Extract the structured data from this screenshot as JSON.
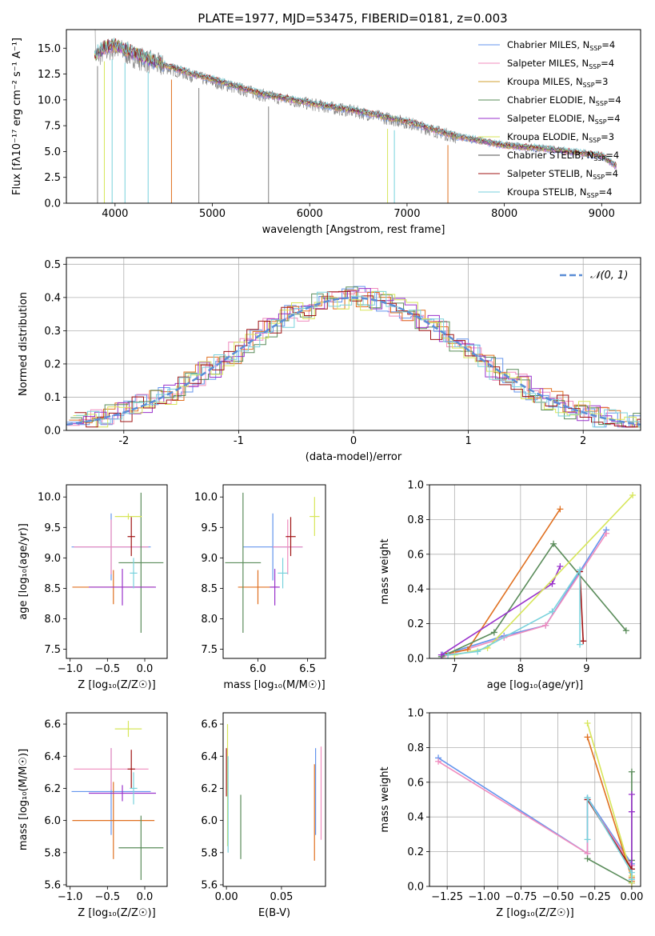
{
  "chart_data": [
    {
      "id": "spectrum",
      "type": "line",
      "title": "PLATE=1977, MJD=53475, FIBERID=0181, z=0.003",
      "xlabel": "wavelength [Angstrom, rest frame]",
      "ylabel": "Flux [fλ10⁻¹⁷ erg cm⁻² s⁻¹ A⁻¹]",
      "xlim": [
        3500,
        9400
      ],
      "ylim": [
        0,
        16.8
      ],
      "xticks": [
        4000,
        5000,
        6000,
        7000,
        8000,
        9000
      ],
      "yticks": [
        0.0,
        2.5,
        5.0,
        7.5,
        10.0,
        12.5,
        15.0
      ],
      "legend_position": "upper-right",
      "data_wavelength": [
        3780,
        3900,
        4000,
        4200,
        4500,
        4800,
        5000,
        5500,
        6000,
        6500,
        7000,
        7500,
        8000,
        8500,
        9000,
        9150
      ],
      "data_flux": [
        14.0,
        14.8,
        15.0,
        14.2,
        13.2,
        12.3,
        11.8,
        10.5,
        9.6,
        8.8,
        7.8,
        6.4,
        5.6,
        5.2,
        4.6,
        3.5
      ],
      "model_flux": [
        14.3,
        15.1,
        15.3,
        14.5,
        13.4,
        12.5,
        12.0,
        10.6,
        9.7,
        8.9,
        7.9,
        6.5,
        5.6,
        5.2,
        4.6,
        3.6
      ],
      "series": [
        {
          "name": "Chabrier MILES, N",
          "sub": "SSP",
          "suffix": "=4",
          "color": "#6495ed"
        },
        {
          "name": "Salpeter MILES, N",
          "sub": "SSP",
          "suffix": "=4",
          "color": "#f08cbe"
        },
        {
          "name": "Kroupa MILES, N",
          "sub": "SSP",
          "suffix": "=3",
          "color": "#d2a032"
        },
        {
          "name": "Chabrier ELODIE, N",
          "sub": "SSP",
          "suffix": "=4",
          "color": "#5a8c5a"
        },
        {
          "name": "Salpeter ELODIE, N",
          "sub": "SSP",
          "suffix": "=4",
          "color": "#9932cc"
        },
        {
          "name": "Kroupa ELODIE, N",
          "sub": "SSP",
          "suffix": "=3",
          "color": "#d7e65a"
        },
        {
          "name": "Chabrier STELIB, N",
          "sub": "SSP",
          "suffix": "=4",
          "color": "#505050"
        },
        {
          "name": "Salpeter STELIB, N",
          "sub": "SSP",
          "suffix": "=4",
          "color": "#a01414"
        },
        {
          "name": "Kroupa STELIB, N",
          "sub": "SSP",
          "suffix": "=4",
          "color": "#78d2dc"
        }
      ]
    },
    {
      "id": "residuals",
      "type": "line",
      "xlabel": "(data-model)/error",
      "ylabel": "Normed distribution",
      "xlim": [
        -2.5,
        2.5
      ],
      "ylim": [
        0,
        0.52
      ],
      "xticks": [
        -2,
        -1,
        0,
        1,
        2
      ],
      "yticks": [
        0.0,
        0.1,
        0.2,
        0.3,
        0.4,
        0.5
      ],
      "grid": true,
      "legend_position": "upper-right",
      "gaussian_label": "𝒩(0, 1)",
      "gaussian_color": "#5b8dd6",
      "histogram_colors": [
        "#6495ed",
        "#f08cbe",
        "#e07020",
        "#5a8c5a",
        "#9932cc",
        "#d7e65a",
        "#a01414",
        "#78d2dc"
      ]
    },
    {
      "id": "age-vs-Z",
      "type": "scatter",
      "xlabel": "Z [log₁₀(Z/Z☉)]",
      "ylabel": "age  [log₁₀(age/yr)]",
      "xlim": [
        -1.05,
        0.3
      ],
      "ylim": [
        7.35,
        10.2
      ],
      "xticks": [
        -1.0,
        -0.5,
        0.0
      ],
      "yticks": [
        7.5,
        8.0,
        8.5,
        9.0,
        9.5,
        10.0
      ],
      "points": [
        {
          "x": -0.45,
          "y": 9.18,
          "xerr": 0.53,
          "yerr": 0.55,
          "color": "#6495ed"
        },
        {
          "x": -0.45,
          "y": 9.18,
          "xerr": 0.5,
          "yerr": 0.45,
          "color": "#f08cbe"
        },
        {
          "x": -0.42,
          "y": 8.52,
          "xerr": 0.55,
          "yerr": 0.28,
          "color": "#e07020"
        },
        {
          "x": -0.05,
          "y": 8.92,
          "xerr": 0.3,
          "yerr": 1.15,
          "color": "#5a8c5a"
        },
        {
          "x": -0.3,
          "y": 8.52,
          "xerr": 0.45,
          "yerr": 0.3,
          "color": "#9932cc"
        },
        {
          "x": -0.22,
          "y": 9.68,
          "xerr": 0.18,
          "yerr": 0.05,
          "color": "#d7e65a"
        },
        {
          "x": -0.18,
          "y": 9.35,
          "xerr": 0.05,
          "yerr": 0.32,
          "color": "#a01414"
        },
        {
          "x": -0.15,
          "y": 8.75,
          "xerr": 0.05,
          "yerr": 0.25,
          "color": "#78d2dc"
        }
      ]
    },
    {
      "id": "age-vs-mass",
      "type": "scatter",
      "xlabel": "mass [log₁₀(M/M☉)]",
      "ylabel": "",
      "xlim": [
        5.65,
        6.68
      ],
      "ylim": [
        7.35,
        10.2
      ],
      "xticks": [
        6.0,
        6.5
      ],
      "yticks": [
        7.5,
        8.0,
        8.5,
        9.0,
        9.5,
        10.0
      ],
      "points": [
        {
          "x": 6.15,
          "y": 9.18,
          "xerr": 0.3,
          "yerr": 0.55,
          "color": "#6495ed"
        },
        {
          "x": 6.3,
          "y": 9.18,
          "xerr": 0.15,
          "yerr": 0.45,
          "color": "#f08cbe"
        },
        {
          "x": 6.0,
          "y": 8.52,
          "xerr": 0.2,
          "yerr": 0.28,
          "color": "#e07020"
        },
        {
          "x": 5.85,
          "y": 8.92,
          "xerr": 0.18,
          "yerr": 1.15,
          "color": "#5a8c5a"
        },
        {
          "x": 6.17,
          "y": 8.52,
          "xerr": 0.05,
          "yerr": 0.3,
          "color": "#9932cc"
        },
        {
          "x": 6.57,
          "y": 9.68,
          "xerr": 0.05,
          "yerr": 0.32,
          "color": "#d7e65a"
        },
        {
          "x": 6.33,
          "y": 9.35,
          "xerr": 0.05,
          "yerr": 0.32,
          "color": "#a01414"
        },
        {
          "x": 6.25,
          "y": 8.75,
          "xerr": 0.05,
          "yerr": 0.25,
          "color": "#78d2dc"
        }
      ]
    },
    {
      "id": "weight-vs-age",
      "type": "line",
      "xlabel": "age  [log₁₀(age/yr)]",
      "ylabel": "mass weight",
      "xlim": [
        6.62,
        9.82
      ],
      "ylim": [
        0,
        1.0
      ],
      "xticks": [
        7,
        8,
        9
      ],
      "yticks": [
        0.0,
        0.2,
        0.4,
        0.6,
        0.8,
        1.0
      ],
      "grid": true,
      "series": [
        {
          "color": "#6495ed",
          "x": [
            6.82,
            7.75,
            8.38,
            9.3
          ],
          "y": [
            0.02,
            0.13,
            0.19,
            0.74
          ]
        },
        {
          "color": "#f08cbe",
          "x": [
            6.82,
            7.75,
            8.38,
            9.3
          ],
          "y": [
            0.01,
            0.12,
            0.19,
            0.72
          ]
        },
        {
          "color": "#e07020",
          "x": [
            6.9,
            7.2,
            8.6
          ],
          "y": [
            0.03,
            0.05,
            0.86
          ]
        },
        {
          "color": "#5a8c5a",
          "x": [
            6.8,
            7.6,
            8.5,
            9.6
          ],
          "y": [
            0.01,
            0.15,
            0.66,
            0.16
          ]
        },
        {
          "color": "#9932cc",
          "x": [
            6.8,
            8.48,
            8.6
          ],
          "y": [
            0.02,
            0.43,
            0.53
          ]
        },
        {
          "color": "#d7e65a",
          "x": [
            7.0,
            7.5,
            9.7
          ],
          "y": [
            0.02,
            0.06,
            0.94
          ]
        },
        {
          "color": "#a01414",
          "x": [
            8.9,
            8.95
          ],
          "y": [
            0.5,
            0.1
          ]
        },
        {
          "color": "#78d2dc",
          "x": [
            6.9,
            7.35,
            8.48,
            8.9,
            8.9
          ],
          "y": [
            0.02,
            0.04,
            0.27,
            0.51,
            0.08
          ]
        }
      ]
    },
    {
      "id": "mass-vs-Z",
      "type": "scatter",
      "xlabel": "Z [log₁₀(Z/Z☉)]",
      "ylabel": "mass [log₁₀(M/M☉)]",
      "xlim": [
        -1.05,
        0.3
      ],
      "ylim": [
        5.59,
        6.67
      ],
      "xticks": [
        -1.0,
        -0.5,
        0.0
      ],
      "yticks": [
        5.6,
        5.8,
        6.0,
        6.2,
        6.4,
        6.6
      ],
      "points": [
        {
          "x": -0.45,
          "y": 6.18,
          "xerr": 0.53,
          "yerr": 0.27,
          "color": "#6495ed"
        },
        {
          "x": -0.45,
          "y": 6.32,
          "xerr": 0.5,
          "yerr": 0.13,
          "color": "#f08cbe"
        },
        {
          "x": -0.42,
          "y": 6.0,
          "xerr": 0.55,
          "yerr": 0.24,
          "color": "#e07020"
        },
        {
          "x": -0.05,
          "y": 5.83,
          "xerr": 0.3,
          "yerr": 0.2,
          "color": "#5a8c5a"
        },
        {
          "x": -0.3,
          "y": 6.17,
          "xerr": 0.45,
          "yerr": 0.05,
          "color": "#9932cc"
        },
        {
          "x": -0.22,
          "y": 6.57,
          "xerr": 0.18,
          "yerr": 0.05,
          "color": "#d7e65a"
        },
        {
          "x": -0.18,
          "y": 6.32,
          "xerr": 0.05,
          "yerr": 0.12,
          "color": "#a01414"
        },
        {
          "x": -0.15,
          "y": 6.2,
          "xerr": 0.05,
          "yerr": 0.1,
          "color": "#78d2dc"
        }
      ]
    },
    {
      "id": "mass-vs-EBV",
      "type": "scatter",
      "xlabel": "E(B-V)",
      "ylabel": "",
      "xlim": [
        -0.003,
        0.09
      ],
      "ylim": [
        5.59,
        6.67
      ],
      "xticks": [
        0.0,
        0.05
      ],
      "yticks": [
        5.6,
        5.8,
        6.0,
        6.2,
        6.4,
        6.6
      ],
      "points": [
        {
          "x": 0.081,
          "y": 6.18,
          "xerr": 0,
          "yerr": 0.27,
          "color": "#6495ed"
        },
        {
          "x": 0.086,
          "y": 6.17,
          "xerr": 0,
          "yerr": 0.29,
          "color": "#f08cbe"
        },
        {
          "x": 0.08,
          "y": 6.05,
          "xerr": 0,
          "yerr": 0.3,
          "color": "#e07020"
        },
        {
          "x": 0.013,
          "y": 5.96,
          "xerr": 0,
          "yerr": 0.2,
          "color": "#5a8c5a"
        },
        {
          "x": 0.0,
          "y": 6.3,
          "xerr": 0,
          "yerr": 0.15,
          "color": "#a01414"
        },
        {
          "x": 0.001,
          "y": 6.22,
          "xerr": 0,
          "yerr": 0.38,
          "color": "#d7e65a"
        },
        {
          "x": 0.0015,
          "y": 6.1,
          "xerr": 0,
          "yerr": 0.3,
          "color": "#78d2dc"
        }
      ]
    },
    {
      "id": "weight-vs-Z",
      "type": "line",
      "xlabel": "Z [log₁₀(Z/Z☉)]",
      "ylabel": "mass weight",
      "xlim": [
        -1.37,
        0.06
      ],
      "ylim": [
        0,
        1.0
      ],
      "xticks": [
        -1.25,
        -1.0,
        -0.75,
        -0.5,
        -0.25,
        0.0
      ],
      "yticks": [
        0.0,
        0.2,
        0.4,
        0.6,
        0.8,
        1.0
      ],
      "grid": true,
      "series": [
        {
          "color": "#6495ed",
          "x": [
            -1.31,
            -0.3,
            -0.3,
            0.0
          ],
          "y": [
            0.74,
            0.19,
            0.51,
            0.13
          ]
        },
        {
          "color": "#f08cbe",
          "x": [
            -1.31,
            -0.3,
            -0.3,
            0.0
          ],
          "y": [
            0.72,
            0.19,
            0.5,
            0.12
          ]
        },
        {
          "color": "#e07020",
          "x": [
            -0.3,
            0.0,
            0.0
          ],
          "y": [
            0.86,
            0.05,
            0.03
          ]
        },
        {
          "color": "#5a8c5a",
          "x": [
            -0.3,
            0.0,
            0.0,
            0.0
          ],
          "y": [
            0.16,
            0.02,
            0.66,
            0.15
          ]
        },
        {
          "color": "#9932cc",
          "x": [
            0.0,
            0.0,
            0.0
          ],
          "y": [
            0.53,
            0.43,
            0.02
          ]
        },
        {
          "color": "#d7e65a",
          "x": [
            -0.3,
            0.0,
            0.0
          ],
          "y": [
            0.94,
            0.06,
            0.02
          ]
        },
        {
          "color": "#a01414",
          "x": [
            -0.3,
            0.0
          ],
          "y": [
            0.5,
            0.1
          ]
        },
        {
          "color": "#78d2dc",
          "x": [
            -0.3,
            -0.3,
            0.0,
            0.0
          ],
          "y": [
            0.27,
            0.51,
            0.08,
            0.04
          ]
        }
      ]
    }
  ]
}
